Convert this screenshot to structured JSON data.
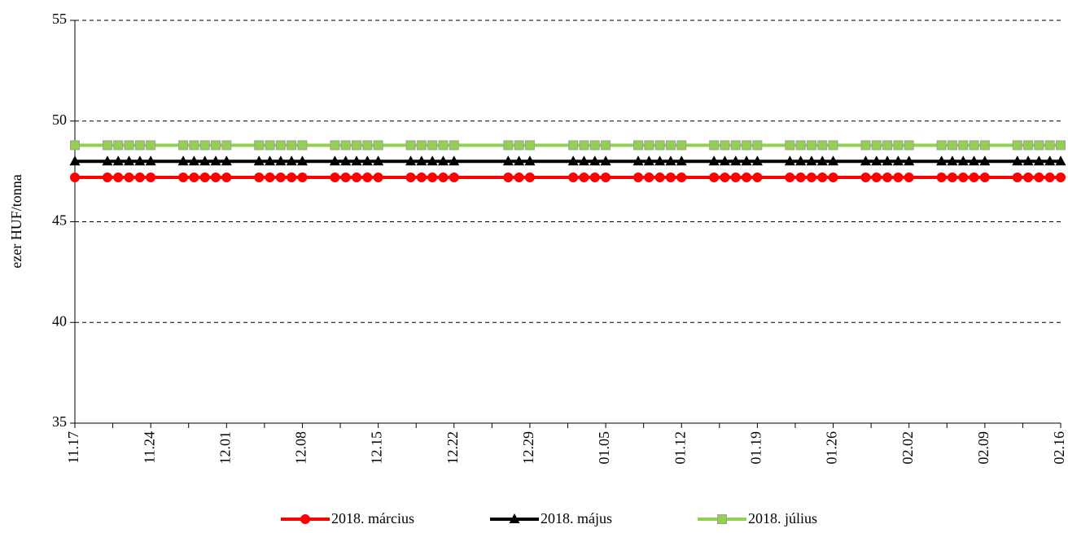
{
  "chart_data": {
    "type": "line",
    "ylabel": "ezer HUF/tonna",
    "x": [
      "11.17",
      "11.20",
      "11.21",
      "11.22",
      "11.23",
      "11.24",
      "11.27",
      "11.28",
      "11.29",
      "11.30",
      "12.01",
      "12.04",
      "12.05",
      "12.06",
      "12.07",
      "12.08",
      "12.11",
      "12.12",
      "12.13",
      "12.14",
      "12.15",
      "12.18",
      "12.19",
      "12.20",
      "12.21",
      "12.22",
      "12.27",
      "12.28",
      "12.29",
      "01.02",
      "01.03",
      "01.04",
      "01.05",
      "01.08",
      "01.09",
      "01.10",
      "01.11",
      "01.12",
      "01.15",
      "01.16",
      "01.17",
      "01.18",
      "01.19",
      "01.22",
      "01.23",
      "01.24",
      "01.25",
      "01.26",
      "01.29",
      "01.30",
      "01.31",
      "02.01",
      "02.02",
      "02.05",
      "02.06",
      "02.07",
      "02.08",
      "02.09",
      "02.12",
      "02.13",
      "02.14",
      "02.15",
      "02.16"
    ],
    "series": [
      {
        "name": "2018. március",
        "color": "#ff0000",
        "marker": "circle",
        "values": [
          47.2,
          47.2,
          47.2,
          47.2,
          47.2,
          47.2,
          47.2,
          47.2,
          47.2,
          47.2,
          47.2,
          47.2,
          47.2,
          47.2,
          47.2,
          47.2,
          47.2,
          47.2,
          47.2,
          47.2,
          47.2,
          47.2,
          47.2,
          47.2,
          47.2,
          47.2,
          47.2,
          47.2,
          47.2,
          47.2,
          47.2,
          47.2,
          47.2,
          47.2,
          47.2,
          47.2,
          47.2,
          47.2,
          47.2,
          47.2,
          47.2,
          47.2,
          47.2,
          47.2,
          47.2,
          47.2,
          47.2,
          47.2,
          47.2,
          47.2,
          47.2,
          47.2,
          47.2,
          47.2,
          47.2,
          47.2,
          47.2,
          47.2,
          47.2,
          47.2,
          47.2,
          47.2,
          47.2
        ]
      },
      {
        "name": "2018. május",
        "color": "#000000",
        "marker": "triangle",
        "values": [
          48,
          48,
          48,
          48,
          48,
          48,
          48,
          48,
          48,
          48,
          48,
          48,
          48,
          48,
          48,
          48,
          48,
          48,
          48,
          48,
          48,
          48,
          48,
          48,
          48,
          48,
          48,
          48,
          48,
          48,
          48,
          48,
          48,
          48,
          48,
          48,
          48,
          48,
          48,
          48,
          48,
          48,
          48,
          48,
          48,
          48,
          48,
          48,
          48,
          48,
          48,
          48,
          48,
          48,
          48,
          48,
          48,
          48,
          48,
          48,
          48,
          48,
          48
        ]
      },
      {
        "name": "2018. július",
        "color": "#92d050",
        "marker": "square",
        "values": [
          48.8,
          48.8,
          48.8,
          48.8,
          48.8,
          48.8,
          48.8,
          48.8,
          48.8,
          48.8,
          48.8,
          48.8,
          48.8,
          48.8,
          48.8,
          48.8,
          48.8,
          48.8,
          48.8,
          48.8,
          48.8,
          48.8,
          48.8,
          48.8,
          48.8,
          48.8,
          48.8,
          48.8,
          48.8,
          48.8,
          48.8,
          48.8,
          48.8,
          48.8,
          48.8,
          48.8,
          48.8,
          48.8,
          48.8,
          48.8,
          48.8,
          48.8,
          48.8,
          48.8,
          48.8,
          48.8,
          48.8,
          48.8,
          48.8,
          48.8,
          48.8,
          48.8,
          48.8,
          48.8,
          48.8,
          48.8,
          48.8,
          48.8,
          48.8,
          48.8,
          48.8,
          48.8,
          48.8
        ]
      }
    ],
    "xlim": [
      "11.17",
      "02.16"
    ],
    "xticks": [
      "11.17",
      "11.24",
      "12.01",
      "12.08",
      "12.15",
      "12.22",
      "12.29",
      "01.05",
      "01.12",
      "01.19",
      "01.26",
      "02.02",
      "02.09",
      "02.16"
    ],
    "ylim": [
      35,
      55
    ],
    "yticks": [
      35,
      40,
      45,
      50,
      55
    ],
    "grid": true,
    "legend": "bottom"
  }
}
